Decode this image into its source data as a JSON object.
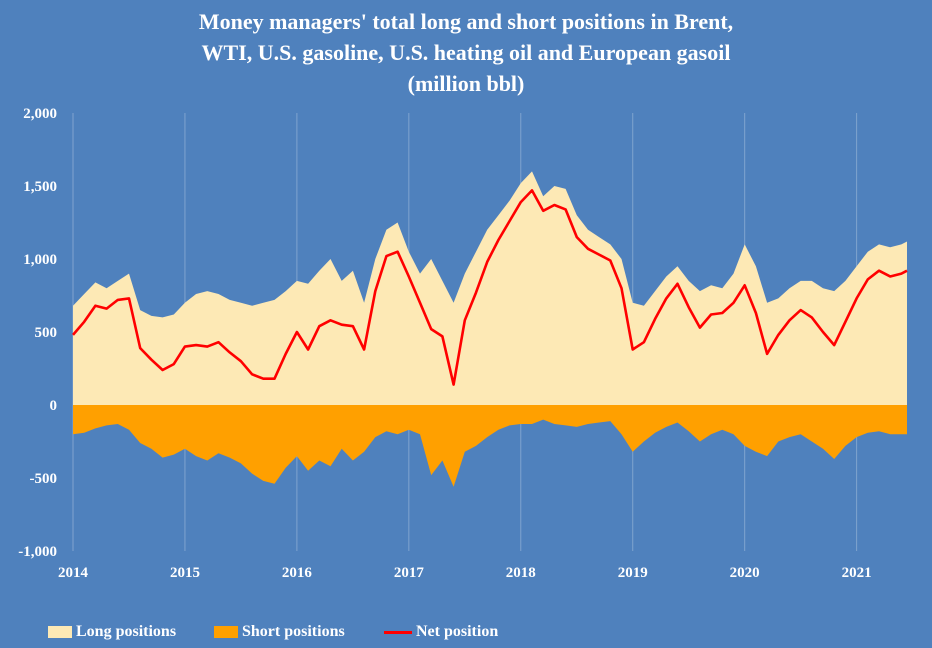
{
  "chart_data": {
    "type": "area",
    "title": [
      "Money managers' total long and short positions in Brent,",
      "WTI, U.S. gasoline, U.S. heating oil and European gasoil",
      "(million bbl)"
    ],
    "xlabel": "",
    "ylabel": "",
    "ylim": [
      -1000,
      2000
    ],
    "y_ticks": [
      2000,
      1500,
      1000,
      500,
      0,
      -500,
      -1000
    ],
    "y_tick_labels": [
      "2,000",
      "1,500",
      "1,000",
      "500",
      "0",
      "-500",
      "-1,000"
    ],
    "xlim": [
      2014.0,
      2021.45
    ],
    "x_ticks": [
      2014,
      2015,
      2016,
      2017,
      2018,
      2019,
      2020,
      2021
    ],
    "x_tick_labels": [
      "2014",
      "2015",
      "2016",
      "2017",
      "2018",
      "2019",
      "2020",
      "2021"
    ],
    "grid": "vertical",
    "legend": "bottom",
    "x": [
      2014.0,
      2014.1,
      2014.2,
      2014.3,
      2014.4,
      2014.5,
      2014.6,
      2014.7,
      2014.8,
      2014.9,
      2015.0,
      2015.1,
      2015.2,
      2015.3,
      2015.4,
      2015.5,
      2015.6,
      2015.7,
      2015.8,
      2015.9,
      2016.0,
      2016.1,
      2016.2,
      2016.3,
      2016.4,
      2016.5,
      2016.6,
      2016.7,
      2016.8,
      2016.9,
      2017.0,
      2017.1,
      2017.2,
      2017.3,
      2017.4,
      2017.5,
      2017.6,
      2017.7,
      2017.8,
      2017.9,
      2018.0,
      2018.1,
      2018.2,
      2018.3,
      2018.4,
      2018.5,
      2018.6,
      2018.7,
      2018.8,
      2018.9,
      2019.0,
      2019.1,
      2019.2,
      2019.3,
      2019.4,
      2019.5,
      2019.6,
      2019.7,
      2019.8,
      2019.9,
      2020.0,
      2020.1,
      2020.2,
      2020.3,
      2020.4,
      2020.5,
      2020.6,
      2020.7,
      2020.8,
      2020.9,
      2021.0,
      2021.1,
      2021.2,
      2021.3,
      2021.4,
      2021.45
    ],
    "series": [
      {
        "name": "Long positions",
        "color": "#fde9b5",
        "values": [
          680,
          760,
          840,
          800,
          850,
          900,
          650,
          610,
          600,
          620,
          700,
          760,
          780,
          760,
          720,
          700,
          680,
          700,
          720,
          780,
          850,
          830,
          920,
          1000,
          850,
          920,
          700,
          1000,
          1200,
          1250,
          1050,
          900,
          1000,
          850,
          700,
          900,
          1050,
          1200,
          1300,
          1400,
          1520,
          1600,
          1430,
          1500,
          1480,
          1300,
          1200,
          1150,
          1100,
          1000,
          700,
          680,
          780,
          880,
          950,
          850,
          780,
          820,
          800,
          900,
          1100,
          950,
          700,
          730,
          800,
          850,
          850,
          800,
          780,
          850,
          950,
          1050,
          1100,
          1080,
          1100,
          1120
        ]
      },
      {
        "name": "Short positions",
        "color": "#ffa000",
        "values": [
          -200,
          -190,
          -160,
          -140,
          -130,
          -170,
          -260,
          -300,
          -360,
          -340,
          -300,
          -350,
          -380,
          -330,
          -360,
          -400,
          -470,
          -520,
          -540,
          -430,
          -350,
          -450,
          -380,
          -420,
          -300,
          -380,
          -320,
          -220,
          -180,
          -200,
          -170,
          -200,
          -480,
          -380,
          -560,
          -320,
          -280,
          -220,
          -170,
          -140,
          -130,
          -130,
          -100,
          -130,
          -140,
          -150,
          -130,
          -120,
          -110,
          -200,
          -320,
          -250,
          -190,
          -150,
          -120,
          -180,
          -250,
          -200,
          -170,
          -200,
          -280,
          -320,
          -350,
          -250,
          -220,
          -200,
          -250,
          -300,
          -370,
          -280,
          -220,
          -190,
          -180,
          -200,
          -200,
          -200
        ]
      },
      {
        "name": "Net position",
        "color": "#ff0000",
        "values": [
          480,
          570,
          680,
          660,
          720,
          730,
          390,
          310,
          240,
          280,
          400,
          410,
          400,
          430,
          360,
          300,
          210,
          180,
          180,
          350,
          500,
          380,
          540,
          580,
          550,
          540,
          380,
          780,
          1020,
          1050,
          880,
          700,
          520,
          470,
          140,
          580,
          770,
          980,
          1130,
          1260,
          1390,
          1470,
          1330,
          1370,
          1340,
          1150,
          1070,
          1030,
          990,
          800,
          380,
          430,
          590,
          730,
          830,
          670,
          530,
          620,
          630,
          700,
          820,
          630,
          350,
          480,
          580,
          650,
          600,
          500,
          410,
          570,
          730,
          860,
          920,
          880,
          900,
          920
        ]
      }
    ]
  }
}
